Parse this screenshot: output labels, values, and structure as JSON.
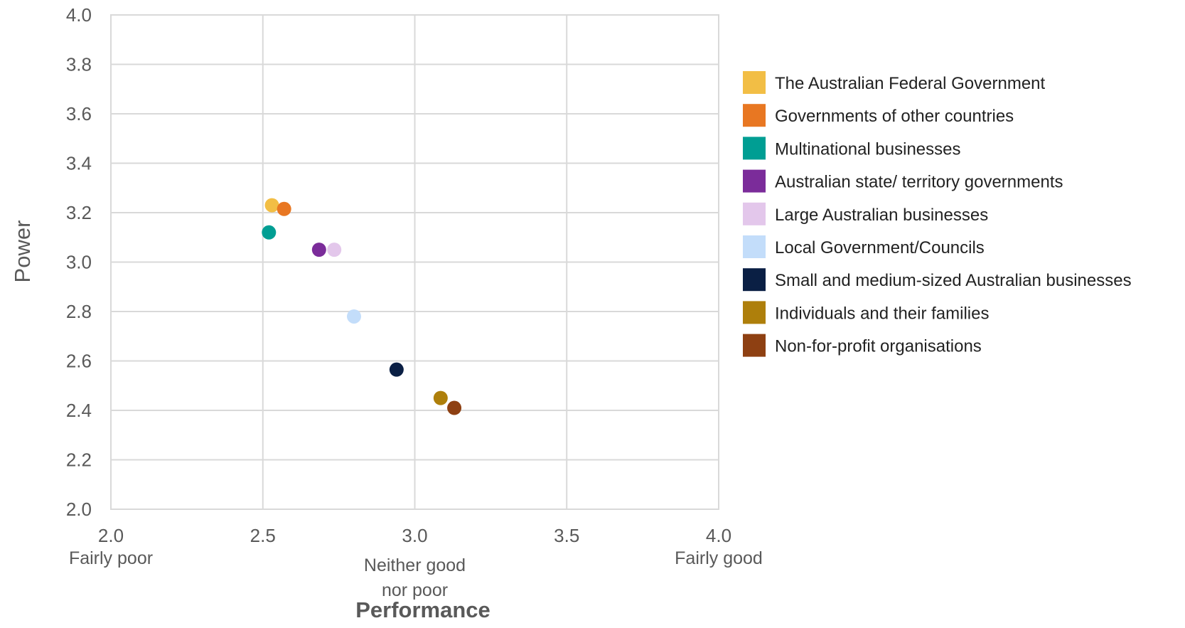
{
  "chart_data": {
    "type": "scatter",
    "xlabel": "Performance",
    "ylabel": "Power",
    "xlim": [
      2.0,
      4.0
    ],
    "ylim": [
      2.0,
      4.0
    ],
    "x_ticks": [
      "2.0",
      "2.5",
      "3.0",
      "3.5",
      "4.0"
    ],
    "y_ticks": [
      "2.0",
      "2.2",
      "2.4",
      "2.6",
      "2.8",
      "3.0",
      "3.2",
      "3.4",
      "3.6",
      "3.8",
      "4.0"
    ],
    "x_tick_labels": [
      {
        "x": 2.0,
        "lines": [
          "Fairly poor"
        ]
      },
      {
        "x": 3.0,
        "lines": [
          "Neither good",
          "nor poor"
        ]
      },
      {
        "x": 4.0,
        "lines": [
          "Fairly good"
        ]
      }
    ],
    "grid": true,
    "legend_position": "right",
    "series": [
      {
        "name": "The Australian Federal Government",
        "color": "#F2BE45",
        "x": 2.53,
        "y": 3.23
      },
      {
        "name": "Governments of other countries",
        "color": "#E87722",
        "x": 2.57,
        "y": 3.215
      },
      {
        "name": "Multinational businesses",
        "color": "#009E93",
        "x": 2.52,
        "y": 3.12
      },
      {
        "name": "Australian state/ territory governments",
        "color": "#7B2C9A",
        "x": 2.685,
        "y": 3.05
      },
      {
        "name": "Large Australian businesses",
        "color": "#E3C7EB",
        "x": 2.735,
        "y": 3.05
      },
      {
        "name": "Local Government/Councils",
        "color": "#C3DDFA",
        "x": 2.8,
        "y": 2.78
      },
      {
        "name": "Small and medium-sized Australian businesses",
        "color": "#0A1F44",
        "x": 2.94,
        "y": 2.565
      },
      {
        "name": "Individuals and their families",
        "color": "#AE7F0B",
        "x": 3.085,
        "y": 2.45
      },
      {
        "name": "Non-for-profit organisations",
        "color": "#8E4012",
        "x": 3.13,
        "y": 2.41
      }
    ]
  }
}
